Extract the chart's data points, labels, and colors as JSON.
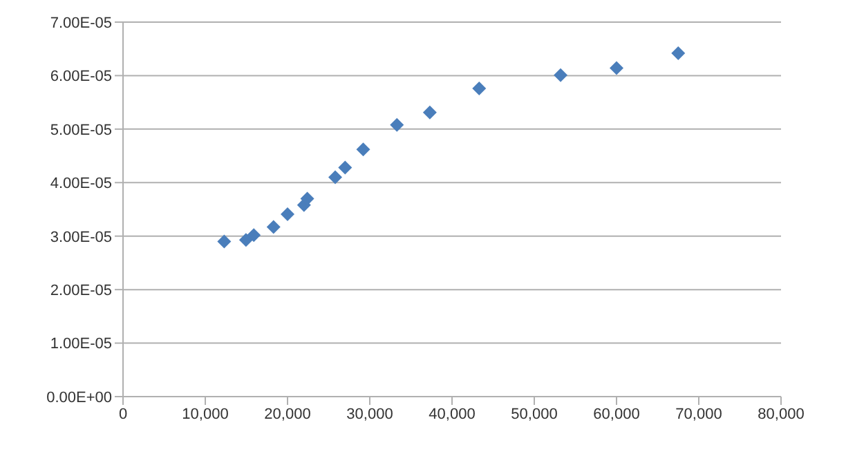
{
  "chart_data": {
    "type": "scatter",
    "x": [
      12300,
      14950,
      15900,
      18300,
      20000,
      22000,
      22400,
      25800,
      27000,
      29200,
      33300,
      37300,
      43300,
      53200,
      60000,
      67500
    ],
    "series": [
      {
        "color": "#4a7ebb",
        "values": [
          2.9e-05,
          2.93e-05,
          3.02e-05,
          3.17e-05,
          3.41e-05,
          3.58e-05,
          3.7e-05,
          4.1e-05,
          4.28e-05,
          4.62e-05,
          5.08e-05,
          5.31e-05,
          5.76e-05,
          6.01e-05,
          6.14e-05,
          6.42e-05
        ]
      }
    ],
    "xlim": [
      0,
      80000
    ],
    "xticks": [
      0,
      {
        "value": 10000,
        "label": "10,000"
      },
      {
        "value": 20000,
        "label": "20,000"
      },
      {
        "value": 30000,
        "label": "30,000"
      },
      {
        "value": 40000,
        "label": "40,000"
      },
      {
        "value": 50000,
        "label": "50,000"
      },
      {
        "value": 60000,
        "label": "60,000"
      },
      {
        "value": 70000,
        "label": "70,000"
      },
      {
        "value": 80000,
        "label": "80,000"
      }
    ],
    "ylim": [
      0,
      7e-05
    ],
    "yticks": [
      {
        "value": 0,
        "label": "0.00E+00"
      },
      {
        "value": 1e-05,
        "label": "1.00E-05"
      },
      {
        "value": 2e-05,
        "label": "2.00E-05"
      },
      {
        "value": 3e-05,
        "label": "3.00E-05"
      },
      {
        "value": 4e-05,
        "label": "4.00E-05"
      },
      {
        "value": 5e-05,
        "label": "5.00E-05"
      },
      {
        "value": 6e-05,
        "label": "6.00E-05"
      },
      {
        "value": 7e-05,
        "label": "7.00E-05"
      }
    ],
    "grid": "y",
    "marker": "diamond"
  }
}
